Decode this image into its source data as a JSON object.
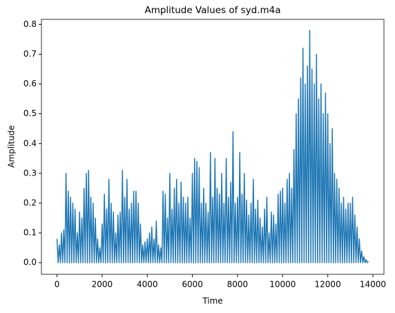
{
  "chart_data": {
    "type": "line",
    "title": "Amplitude Values of syd.m4a",
    "xlabel": "Time",
    "ylabel": "Amplitude",
    "color": "#1f77b4",
    "x": [
      0,
      50,
      100,
      150,
      200,
      250,
      300,
      350,
      400,
      450,
      500,
      550,
      600,
      650,
      700,
      750,
      800,
      850,
      900,
      950,
      1000,
      1050,
      1100,
      1150,
      1200,
      1250,
      1300,
      1350,
      1400,
      1450,
      1500,
      1550,
      1600,
      1650,
      1700,
      1750,
      1800,
      1850,
      1900,
      1950,
      2000,
      2050,
      2100,
      2150,
      2200,
      2250,
      2300,
      2350,
      2400,
      2450,
      2500,
      2550,
      2600,
      2650,
      2700,
      2750,
      2800,
      2850,
      2900,
      2950,
      3000,
      3050,
      3100,
      3150,
      3200,
      3250,
      3300,
      3350,
      3400,
      3450,
      3500,
      3550,
      3600,
      3650,
      3700,
      3750,
      3800,
      3850,
      3900,
      3950,
      4000,
      4050,
      4100,
      4150,
      4200,
      4250,
      4300,
      4350,
      4400,
      4450,
      4500,
      4550,
      4600,
      4650,
      4700,
      4750,
      4800,
      4850,
      4900,
      4950,
      5000,
      5050,
      5100,
      5150,
      5200,
      5250,
      5300,
      5350,
      5400,
      5450,
      5500,
      5550,
      5600,
      5650,
      5700,
      5750,
      5800,
      5850,
      5900,
      5950,
      6000,
      6050,
      6100,
      6150,
      6200,
      6250,
      6300,
      6350,
      6400,
      6450,
      6500,
      6550,
      6600,
      6650,
      6700,
      6750,
      6800,
      6850,
      6900,
      6950,
      7000,
      7050,
      7100,
      7150,
      7200,
      7250,
      7300,
      7350,
      7400,
      7450,
      7500,
      7550,
      7600,
      7650,
      7700,
      7750,
      7800,
      7850,
      7900,
      7950,
      8000,
      8050,
      8100,
      8150,
      8200,
      8250,
      8300,
      8350,
      8400,
      8450,
      8500,
      8550,
      8600,
      8650,
      8700,
      8750,
      8800,
      8850,
      8900,
      8950,
      9000,
      9050,
      9100,
      9150,
      9200,
      9250,
      9300,
      9350,
      9400,
      9450,
      9500,
      9550,
      9600,
      9650,
      9700,
      9750,
      9800,
      9850,
      9900,
      9950,
      10000,
      10050,
      10100,
      10150,
      10200,
      10250,
      10300,
      10350,
      10400,
      10450,
      10500,
      10550,
      10600,
      10650,
      10700,
      10750,
      10800,
      10850,
      10900,
      10950,
      11000,
      11050,
      11100,
      11150,
      11200,
      11250,
      11300,
      11350,
      11400,
      11450,
      11500,
      11550,
      11600,
      11650,
      11700,
      11750,
      11800,
      11850,
      11900,
      11950,
      12000,
      12050,
      12100,
      12150,
      12200,
      12250,
      12300,
      12350,
      12400,
      12450,
      12500,
      12550,
      12600,
      12650,
      12700,
      12750,
      12800,
      12850,
      12900,
      12950,
      13000,
      13050,
      13100,
      13150,
      13200,
      13250,
      13300,
      13350,
      13400,
      13450,
      13500,
      13550,
      13600,
      13650,
      13700,
      13750,
      13800
    ],
    "values": [
      0.08,
      0,
      0.06,
      0,
      0.1,
      0,
      0.11,
      0,
      0.3,
      0,
      0.24,
      0,
      0.22,
      0,
      0.2,
      0,
      0.18,
      0,
      0.1,
      0,
      0.17,
      0,
      0.15,
      0,
      0.25,
      0,
      0.3,
      0,
      0.31,
      0,
      0.22,
      0,
      0.2,
      0,
      0.15,
      0,
      0.08,
      0,
      0.05,
      0,
      0.13,
      0,
      0.23,
      0,
      0.18,
      0,
      0.28,
      0,
      0.2,
      0,
      0.17,
      0,
      0.1,
      0,
      0.16,
      0,
      0.17,
      0,
      0.31,
      0,
      0.22,
      0,
      0.28,
      0,
      0.18,
      0,
      0.2,
      0,
      0.24,
      0,
      0.24,
      0,
      0.2,
      0,
      0.13,
      0,
      0.06,
      0,
      0.07,
      0,
      0.08,
      0,
      0.1,
      0,
      0.12,
      0,
      0.08,
      0,
      0.14,
      0,
      0.06,
      0,
      0.05,
      0,
      0.24,
      0,
      0.23,
      0,
      0.15,
      0,
      0.3,
      0,
      0.18,
      0,
      0.25,
      0,
      0.28,
      0,
      0.2,
      0,
      0.27,
      0,
      0.22,
      0,
      0.2,
      0,
      0.22,
      0,
      0.15,
      0,
      0.3,
      0,
      0.35,
      0,
      0.34,
      0,
      0.32,
      0,
      0.2,
      0,
      0.25,
      0,
      0.2,
      0,
      0.17,
      0,
      0.37,
      0,
      0.22,
      0,
      0.35,
      0,
      0.25,
      0,
      0.23,
      0,
      0.3,
      0,
      0.2,
      0,
      0.35,
      0,
      0.22,
      0,
      0.27,
      0,
      0.44,
      0,
      0.2,
      0,
      0.22,
      0,
      0.37,
      0,
      0.23,
      0,
      0.3,
      0,
      0.21,
      0,
      0.16,
      0,
      0.2,
      0,
      0.28,
      0,
      0.18,
      0,
      0.21,
      0,
      0.15,
      0,
      0.12,
      0,
      0.18,
      0,
      0.22,
      0,
      0.1,
      0,
      0.17,
      0,
      0.16,
      0,
      0.13,
      0,
      0.23,
      0,
      0.24,
      0,
      0.25,
      0,
      0.2,
      0,
      0.28,
      0,
      0.3,
      0,
      0.25,
      0,
      0.38,
      0,
      0.5,
      0,
      0.55,
      0,
      0.62,
      0,
      0.72,
      0,
      0.6,
      0,
      0.66,
      0,
      0.78,
      0,
      0.65,
      0,
      0.6,
      0,
      0.7,
      0,
      0.55,
      0,
      0.6,
      0,
      0.5,
      0,
      0.57,
      0,
      0.5,
      0,
      0.4,
      0,
      0.45,
      0,
      0.3,
      0,
      0.28,
      0,
      0.25,
      0,
      0.2,
      0,
      0.22,
      0,
      0.18,
      0,
      0.2,
      0,
      0.2,
      0,
      0.22,
      0,
      0.16,
      0,
      0.12,
      0,
      0.08,
      0,
      0.04,
      0,
      0.02,
      0,
      0.01,
      0,
      0.005
    ],
    "xlim": [
      -690,
      14490
    ],
    "xticks": [
      0,
      2000,
      4000,
      6000,
      8000,
      10000,
      12000,
      14000
    ],
    "ylim": [
      -0.039,
      0.817
    ],
    "yticks": [
      {
        "value": 0,
        "label": "0.0"
      },
      0.1,
      0.2,
      0.3,
      0.4,
      0.5,
      0.6,
      0.7,
      0.8
    ]
  }
}
